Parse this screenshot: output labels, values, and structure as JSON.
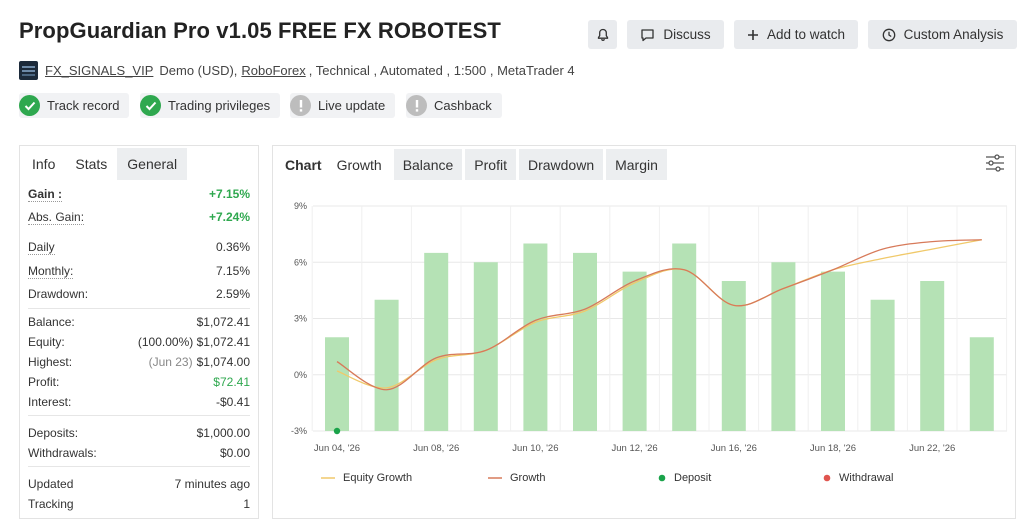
{
  "header": {
    "title": "PropGuardian Pro v1.05 FREE FX ROBOTEST",
    "buttons": {
      "discuss": "Discuss",
      "add_to_watch": "Add to watch",
      "custom_analysis": "Custom Analysis"
    }
  },
  "meta": {
    "author": "FX_SIGNALS_VIP",
    "account_type": "Demo (USD),",
    "broker": "RoboForex",
    "details": ", Technical , Automated , 1:500 , MetaTrader 4"
  },
  "badges": [
    {
      "label": "Track record",
      "status": "ok"
    },
    {
      "label": "Trading privileges",
      "status": "ok"
    },
    {
      "label": "Live update",
      "status": "unavailable"
    },
    {
      "label": "Cashback",
      "status": "unavailable"
    }
  ],
  "left_tabs": [
    "Info",
    "Stats",
    "General"
  ],
  "stats": {
    "gain_label": "Gain :",
    "gain": "+7.15%",
    "abs_gain_label": "Abs. Gain:",
    "abs_gain": "+7.24%",
    "daily_label": "Daily",
    "daily": "0.36%",
    "monthly_label": "Monthly:",
    "monthly": "7.15%",
    "drawdown_label": "Drawdown:",
    "drawdown": "2.59%",
    "balance_label": "Balance:",
    "balance": "$1,072.41",
    "equity_label": "Equity:",
    "equity_pct": "(100.00%)",
    "equity": "$1,072.41",
    "highest_label": "Highest:",
    "highest_date": "(Jun 23)",
    "highest": "$1,074.00",
    "profit_label": "Profit:",
    "profit": "$72.41",
    "interest_label": "Interest:",
    "interest": "-$0.41",
    "deposits_label": "Deposits:",
    "deposits": "$1,000.00",
    "withdrawals_label": "Withdrawals:",
    "withdrawals": "$0.00",
    "updated_label": "Updated",
    "updated": "7 minutes ago",
    "tracking_label": "Tracking",
    "tracking": "1"
  },
  "chart_tabs": {
    "label": "Chart",
    "tabs": [
      "Growth",
      "Balance",
      "Profit",
      "Drawdown",
      "Margin"
    ],
    "active": "Growth"
  },
  "colors": {
    "bars": "#b5e2b5",
    "equity_growth": "#f0c96a",
    "growth": "#d77a5a",
    "deposit": "#1aa34a",
    "withdrawal": "#e0554f",
    "ok_badge": "#2fa84f",
    "unavailable_badge": "#bdbdbd"
  },
  "chart_data": {
    "type": "bar",
    "ylim": [
      -3,
      9
    ],
    "yticks": [
      "9%",
      "6%",
      "3%",
      "0%",
      "-3%"
    ],
    "ytick_values": [
      9,
      6,
      3,
      0,
      -3
    ],
    "xticks": [
      "Jun 04, '26",
      "Jun 08, '26",
      "Jun 10, '26",
      "Jun 12, '26",
      "Jun 16, '26",
      "Jun 18, '26",
      "Jun 22, '26"
    ],
    "xtick_bar_index": [
      0,
      2,
      4,
      6,
      8,
      10,
      12
    ],
    "bar_values": [
      2.0,
      4.0,
      6.5,
      6.0,
      7.0,
      6.5,
      5.5,
      7.0,
      5.0,
      6.0,
      5.5,
      4.0,
      5.0,
      2.0
    ],
    "series": [
      {
        "name": "Equity Growth",
        "x": [
          0,
          1,
          2,
          3,
          4,
          5,
          6,
          7,
          8,
          9,
          10,
          11,
          12,
          13
        ],
        "values": [
          0.2,
          -0.7,
          0.8,
          1.3,
          2.8,
          3.4,
          4.9,
          5.6,
          3.7,
          4.6,
          5.6,
          6.2,
          6.7,
          7.2
        ]
      },
      {
        "name": "Growth",
        "x": [
          0,
          1,
          2,
          3,
          4,
          5,
          6,
          7,
          8,
          9,
          10,
          11,
          12,
          13
        ],
        "values": [
          0.7,
          -0.8,
          0.9,
          1.3,
          2.9,
          3.5,
          5.0,
          5.6,
          3.7,
          4.6,
          5.6,
          6.7,
          7.1,
          7.2
        ]
      }
    ],
    "deposit": {
      "x": 0,
      "value": -3
    },
    "legend": [
      "Equity Growth",
      "Growth",
      "Deposit",
      "Withdrawal"
    ],
    "grid": true
  }
}
